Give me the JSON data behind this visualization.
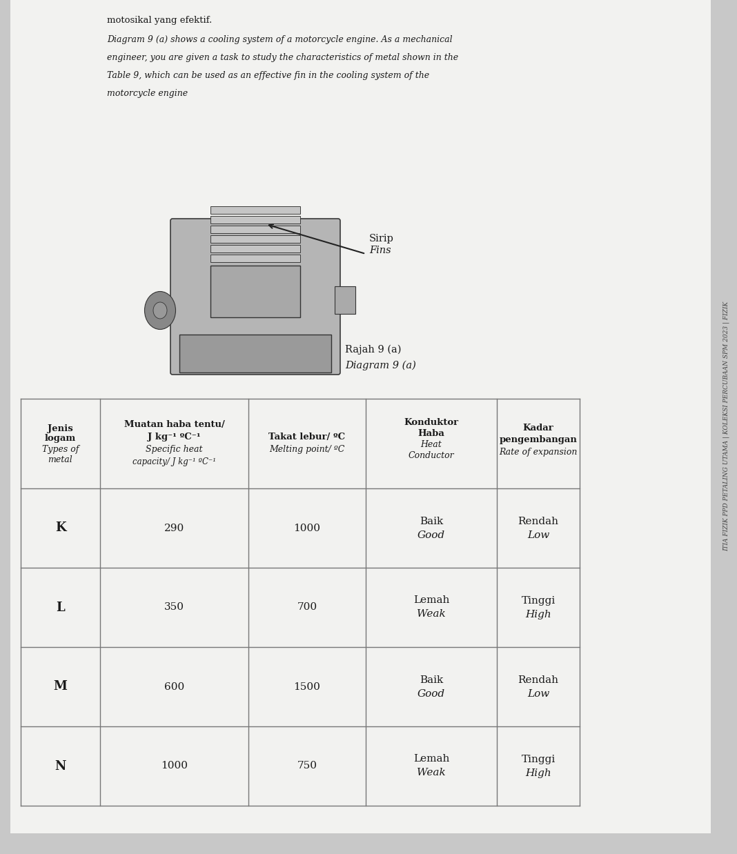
{
  "bg_color": "#c8c8c8",
  "page_bg": "#f2f2f0",
  "intro_line1": "motosikal yang efektif.",
  "intro_line2": "Diagram 9 (a) shows a cooling system of a motorcycle engine. As a mechanical",
  "intro_line3": "engineer, you are given a task to study the characteristics of metal shown in the",
  "intro_line4": "Table 9, which can be used as an effective fin in the cooling system of the",
  "intro_line5": "motorcycle engine",
  "label_sirip_ms": "Sirip",
  "label_sirip_en": "Fins",
  "caption_ms": "Rajah 9 (a)",
  "caption_en": "Diagram 9 (a)",
  "side_text": "ITIA FIZIK PPD PETALING UTAMA | KOLEKSI PERCUBAAN SPM 2023 | FIZIK",
  "header_col0_line1": "Jenis",
  "header_col0_line2": "logam",
  "header_col0_line3": "Types of",
  "header_col0_line4": "metal",
  "header_col1_line1": "Muatan haba tentu/",
  "header_col1_line2": "J kg⁻¹ ºC⁻¹",
  "header_col1_line3": "Specific heat",
  "header_col1_line4": "capacity/ J kg⁻¹ ºC⁻¹",
  "header_col2_line1": "Takat lebur/ ºC",
  "header_col2_line2": "Melting point/ ºC",
  "header_col3_line1": "Konduktor",
  "header_col3_line2": "Haba",
  "header_col3_line3": "Heat",
  "header_col3_line4": "Conductor",
  "header_col4_line1": "Kadar",
  "header_col4_line2": "pengembangan",
  "header_col4_line3": "Rate of expansion",
  "rows": [
    {
      "metal": "K",
      "specific_heat": "290",
      "melting_point": "1000",
      "conductor_ms": "Baik",
      "conductor_en": "Good",
      "expansion_ms": "Rendah",
      "expansion_en": "Low"
    },
    {
      "metal": "L",
      "specific_heat": "350",
      "melting_point": "700",
      "conductor_ms": "Lemah",
      "conductor_en": "Weak",
      "expansion_ms": "Tinggi",
      "expansion_en": "High"
    },
    {
      "metal": "M",
      "specific_heat": "600",
      "melting_point": "1500",
      "conductor_ms": "Baik",
      "conductor_en": "Good",
      "expansion_ms": "Rendah",
      "expansion_en": "Low"
    },
    {
      "metal": "N",
      "specific_heat": "1000",
      "melting_point": "750",
      "conductor_ms": "Lemah",
      "conductor_en": "Weak",
      "expansion_ms": "Tinggi",
      "expansion_en": "High"
    }
  ],
  "table_line_color": "#777777",
  "text_color": "#1a1a1a"
}
